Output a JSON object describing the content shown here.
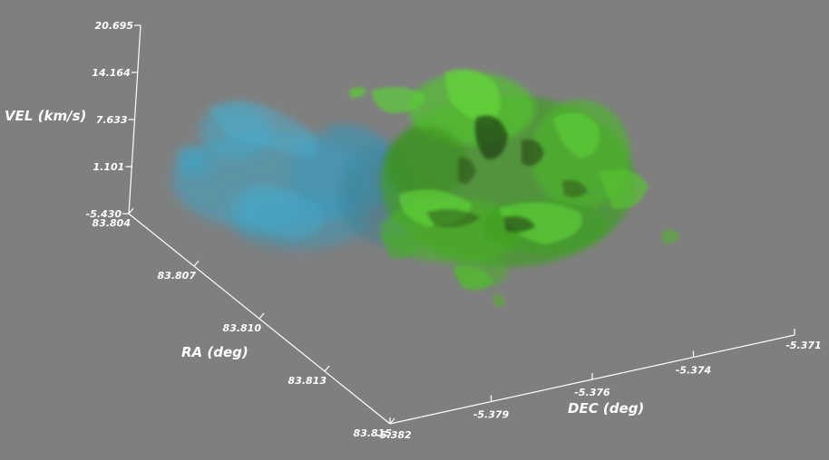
{
  "scene": {
    "background_color": "#7f7f7f",
    "axis_color": "#ffffff",
    "volume_colors": {
      "low_velocity": "#3fa3c4",
      "high_velocity": "#4fc72a",
      "dense_core": "#1f3a0d"
    }
  },
  "axes": {
    "vel": {
      "title": "VEL (km/s)",
      "ticks": [
        "20.695",
        "14.164",
        "7.633",
        "1.101",
        "-5.430"
      ]
    },
    "ra": {
      "title": "RA (deg)",
      "ticks": [
        "83.804",
        "83.807",
        "83.810",
        "83.813",
        "83.815"
      ]
    },
    "dec": {
      "title": "DEC (deg)",
      "ticks": [
        "-5.382",
        "-5.379",
        "-5.376",
        "-5.374",
        "-5.371"
      ]
    }
  }
}
